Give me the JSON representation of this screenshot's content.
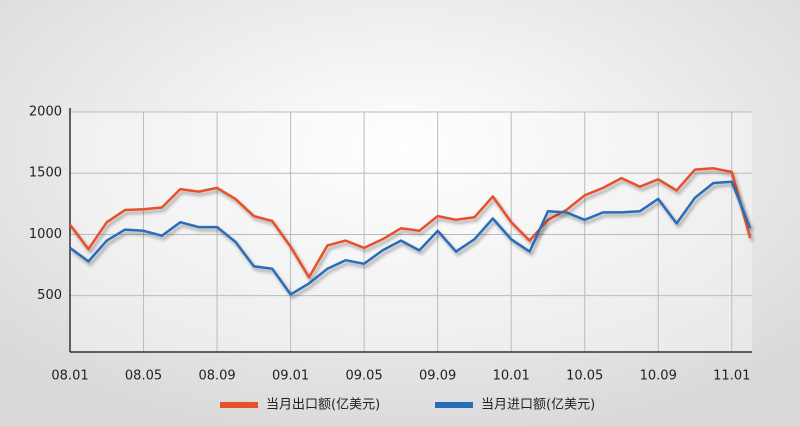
{
  "chart_data": {
    "type": "line",
    "categories": [
      "08.01",
      null,
      null,
      null,
      "08.05",
      null,
      null,
      null,
      "08.09",
      null,
      null,
      null,
      "09.01",
      null,
      null,
      null,
      "09.05",
      null,
      null,
      null,
      "09.09",
      null,
      null,
      null,
      "10.01",
      null,
      null,
      null,
      "10.05",
      null,
      null,
      null,
      "10.09",
      null,
      null,
      null,
      "11.01",
      null
    ],
    "series": [
      {
        "name": "当月出口额(亿美元)",
        "color": "#e8502a",
        "values": [
          1080,
          880,
          1100,
          1200,
          1205,
          1220,
          1370,
          1350,
          1380,
          1290,
          1150,
          1110,
          900,
          650,
          910,
          950,
          890,
          960,
          1050,
          1030,
          1150,
          1120,
          1140,
          1310,
          1100,
          950,
          1120,
          1200,
          1320,
          1380,
          1460,
          1390,
          1450,
          1360,
          1530,
          1540,
          1510,
          970
        ]
      },
      {
        "name": "当月进口额(亿美元)",
        "color": "#2a6cb8",
        "values": [
          890,
          780,
          950,
          1040,
          1030,
          990,
          1100,
          1060,
          1060,
          940,
          740,
          720,
          510,
          600,
          720,
          790,
          760,
          870,
          950,
          870,
          1030,
          860,
          960,
          1130,
          960,
          860,
          1190,
          1180,
          1120,
          1180,
          1180,
          1190,
          1290,
          1090,
          1300,
          1420,
          1430,
          1050
        ]
      }
    ],
    "ylim": [
      40,
      2000
    ],
    "yticks": [
      500,
      1000,
      1500,
      2000
    ],
    "grid": true
  }
}
